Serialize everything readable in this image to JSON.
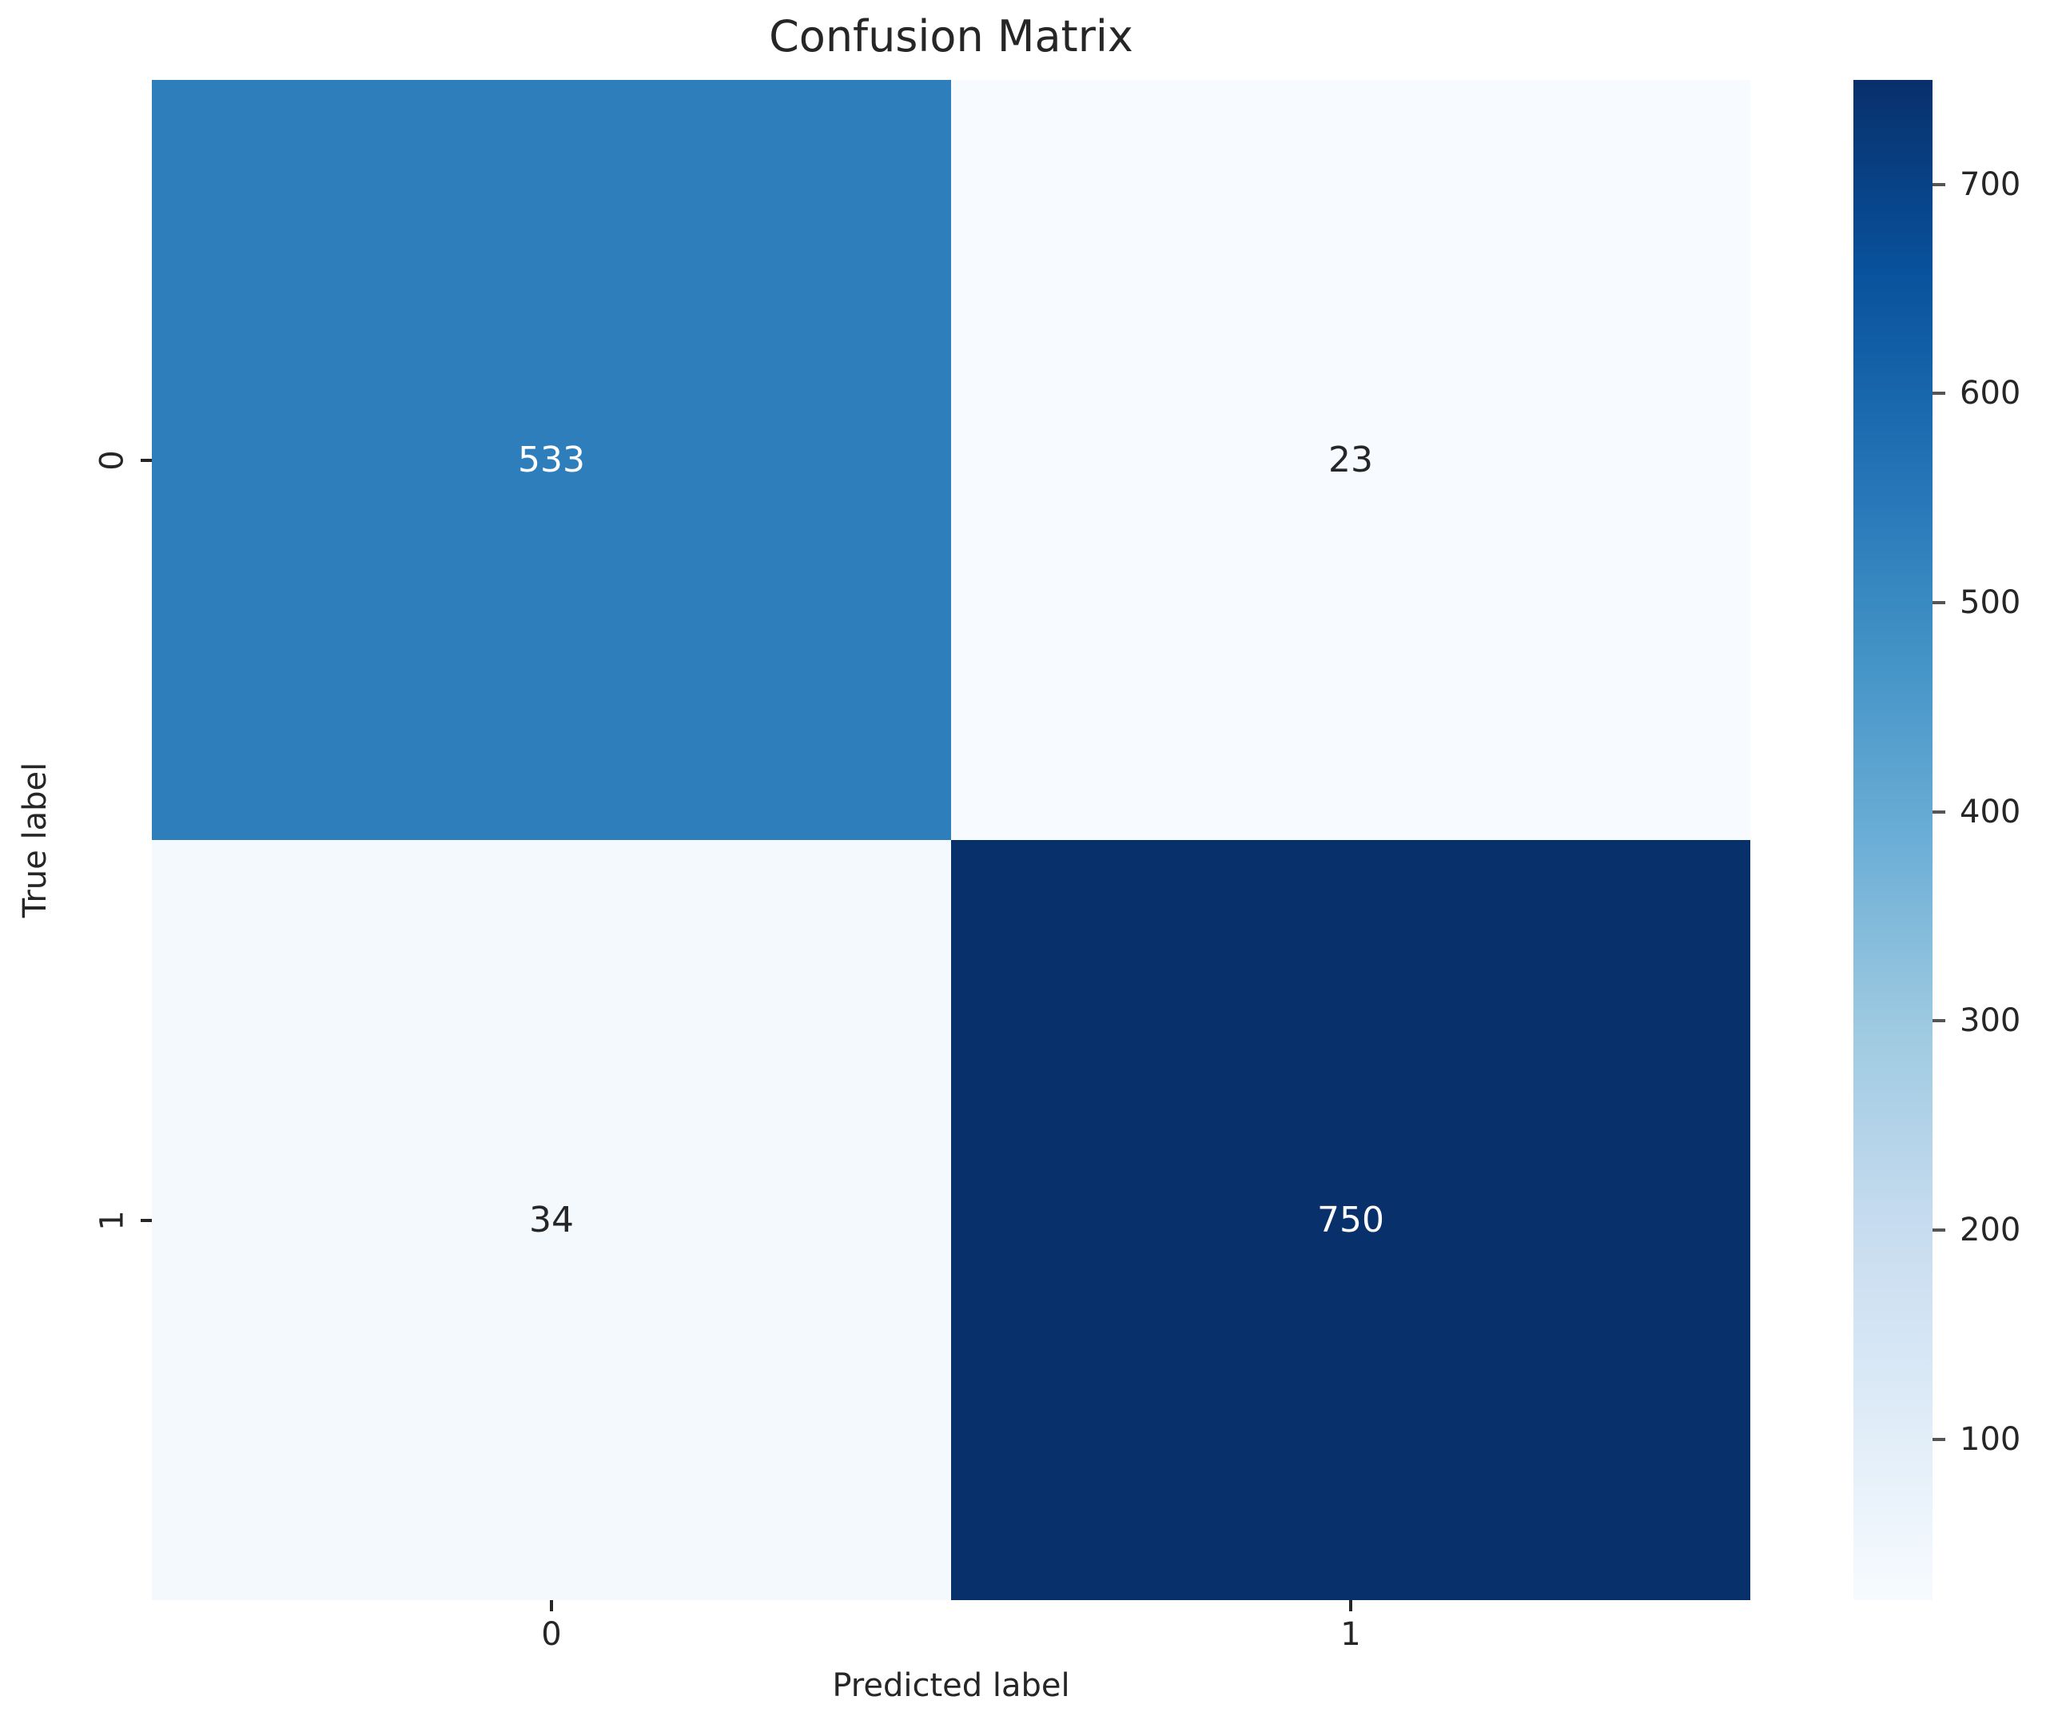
{
  "chart_data": {
    "type": "heatmap",
    "title": "Confusion Matrix",
    "xlabel": "Predicted label",
    "ylabel": "True label",
    "x_categories": [
      "0",
      "1"
    ],
    "y_categories": [
      "0",
      "1"
    ],
    "matrix": [
      [
        533,
        23
      ],
      [
        34,
        750
      ]
    ],
    "vmin": 23,
    "vmax": 750,
    "colormap": "Blues",
    "grid": false,
    "legend_position": "colorbar-right",
    "cell_colors": [
      [
        "#2e7ebc",
        "#f7fbff"
      ],
      [
        "#f4f9fe",
        "#08306b"
      ]
    ],
    "cell_text_colors": [
      [
        "#ffffff",
        "#262626"
      ],
      [
        "#262626",
        "#ffffff"
      ]
    ],
    "colorbar": {
      "ticks": [
        100,
        200,
        300,
        400,
        500,
        600,
        700
      ],
      "gradient_bottom_to_top": [
        "#f7fbff",
        "#deebf7",
        "#c6dbef",
        "#9ecae1",
        "#6baed6",
        "#4292c6",
        "#2171b5",
        "#08519c",
        "#08306b"
      ]
    },
    "colors": {
      "background": "#ffffff",
      "text": "#262626",
      "tick": "#262626"
    }
  }
}
